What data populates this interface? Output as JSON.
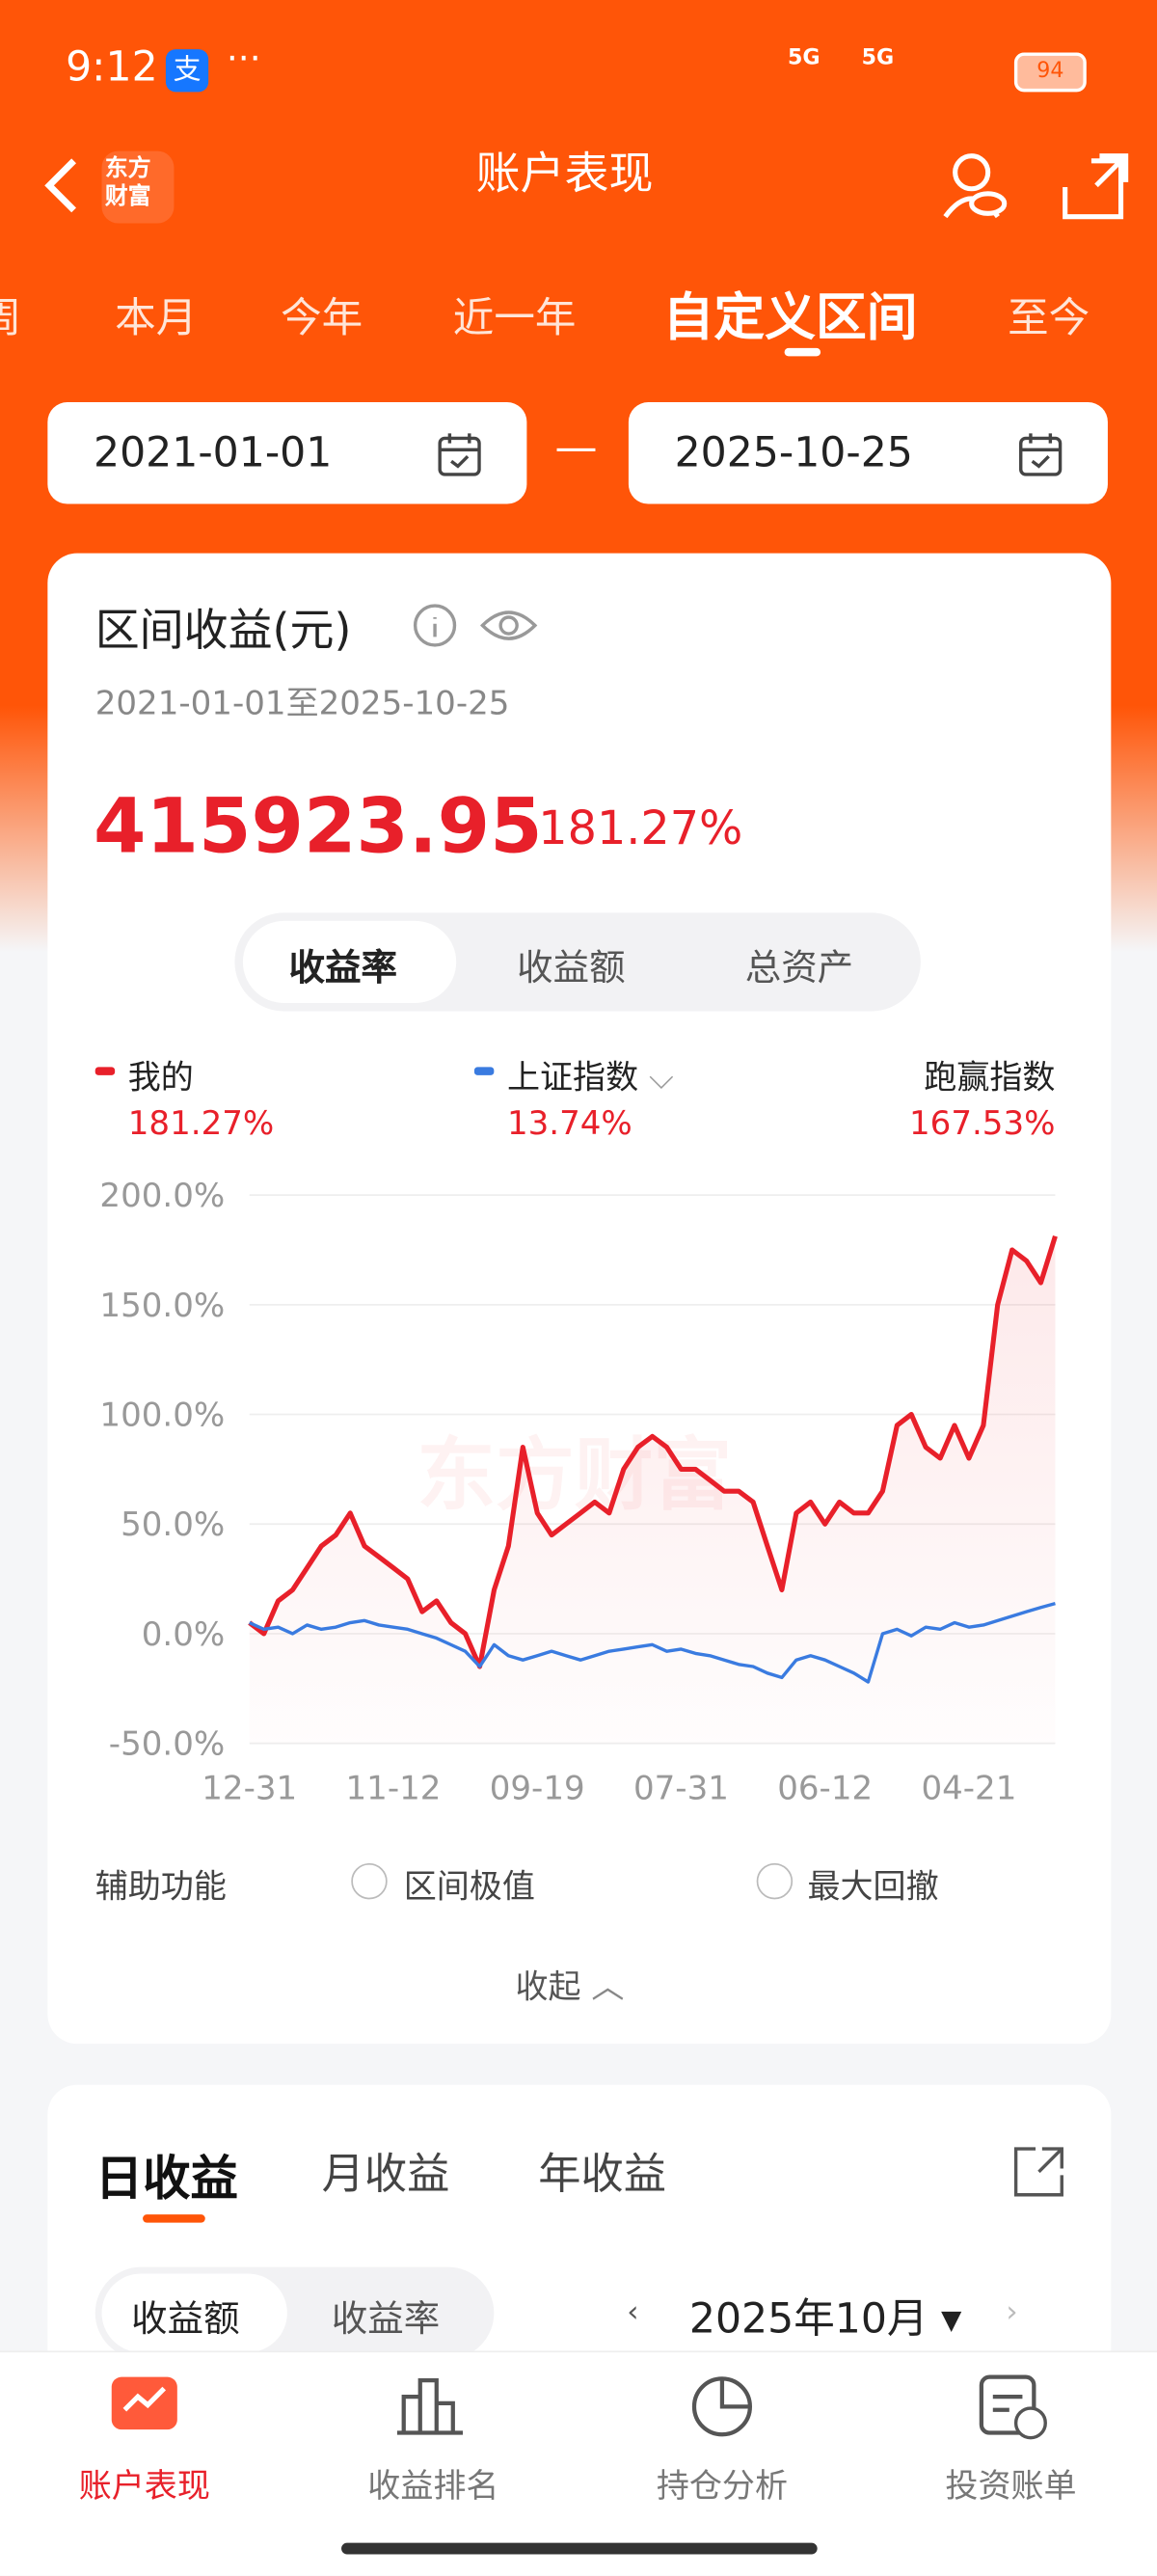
{
  "status_bar": {
    "time": "9:12",
    "app_icon": "支",
    "network": [
      "5G",
      "5G"
    ],
    "battery": "94"
  },
  "header": {
    "title": "账户表现",
    "logo": [
      "东方",
      "财富"
    ]
  },
  "period_tabs": [
    "周",
    "本月",
    "今年",
    "近一年",
    "自定义区间",
    "至今"
  ],
  "date_range": {
    "start": "2021-01-01",
    "separator": "—",
    "end": "2025-10-25"
  },
  "summary": {
    "title": "区间收益(元)",
    "range": "2021-01-01至2025-10-25",
    "amount": "415923.95",
    "rate": "181.27%"
  },
  "metric_tabs": [
    "收益率",
    "收益额",
    "总资产"
  ],
  "legend_values": [
    "181.27%",
    "13.74%"
  ],
  "outperform": {
    "label": "跑赢指数",
    "value": "167.53%"
  },
  "chart_data": {
    "type": "line",
    "watermark": "东方财富",
    "categories": [
      "12-31",
      null,
      null,
      null,
      null,
      null,
      null,
      null,
      null,
      null,
      "11-12",
      null,
      null,
      null,
      null,
      null,
      null,
      null,
      null,
      null,
      "09-19",
      null,
      null,
      null,
      null,
      null,
      null,
      null,
      null,
      null,
      "07-31",
      null,
      null,
      null,
      null,
      null,
      null,
      null,
      null,
      null,
      "06-12",
      null,
      null,
      null,
      null,
      null,
      null,
      null,
      null,
      null,
      "04-21",
      null,
      null,
      null,
      null,
      null,
      null
    ],
    "series": [
      {
        "name": "我的",
        "color": "#e8202a",
        "values": [
          5,
          0,
          15,
          20,
          30,
          40,
          45,
          55,
          40,
          35,
          30,
          25,
          10,
          15,
          5,
          0,
          -15,
          20,
          40,
          85,
          55,
          45,
          50,
          55,
          60,
          55,
          75,
          85,
          90,
          85,
          75,
          75,
          70,
          65,
          65,
          60,
          40,
          20,
          55,
          60,
          50,
          60,
          55,
          55,
          65,
          95,
          100,
          85,
          80,
          95,
          80,
          95,
          150,
          175,
          170,
          160,
          181.27
        ]
      },
      {
        "name": "上证指数",
        "color": "#3a7be0",
        "values": [
          5,
          2,
          3,
          0,
          4,
          2,
          3,
          5,
          6,
          4,
          3,
          2,
          0,
          -2,
          -5,
          -8,
          -15,
          -5,
          -10,
          -12,
          -10,
          -8,
          -10,
          -12,
          -10,
          -8,
          -7,
          -6,
          -5,
          -8,
          -7,
          -9,
          -10,
          -12,
          -14,
          -15,
          -18,
          -20,
          -12,
          -10,
          -12,
          -15,
          -18,
          -22,
          0,
          2,
          -1,
          3,
          2,
          5,
          3,
          4,
          6,
          8,
          10,
          12,
          13.74
        ]
      }
    ],
    "ylim": [
      -50,
      200
    ],
    "yticks": [
      {
        "value": -50,
        "label": "-50.0%"
      },
      {
        "value": 0,
        "label": "0.0%"
      },
      {
        "value": 50,
        "label": "50.0%"
      },
      {
        "value": 100,
        "label": "100.0%"
      },
      {
        "value": 150,
        "label": "150.0%"
      },
      {
        "value": 200,
        "label": "200.0%"
      }
    ],
    "grid": true
  },
  "tools": {
    "label": "辅助功能",
    "options": [
      "区间极值",
      "最大回撤"
    ],
    "collapse": "收起"
  },
  "earnings": {
    "tabs": [
      "日收益",
      "月收益",
      "年收益"
    ],
    "toggle": [
      "收益额",
      "收益率"
    ],
    "month": "2025年10月"
  },
  "bottom_nav": [
    "账户表现",
    "收益排名",
    "持仓分析",
    "投资账单"
  ]
}
